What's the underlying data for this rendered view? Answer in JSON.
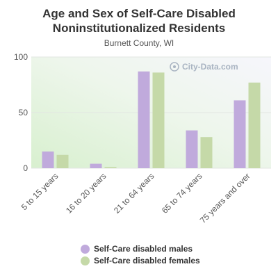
{
  "chart_data": {
    "type": "bar",
    "title": "Age and Sex of Self-Care Disabled Noninstitutionalized Residents",
    "subtitle": "Burnett County, WI",
    "categories": [
      "5 to 15 years",
      "16 to 20 years",
      "21 to 64 years",
      "65 to 74 years",
      "75 years and over"
    ],
    "series": [
      {
        "name": "Self-Care disabled males",
        "color": "#c0aadc",
        "values": [
          15,
          4,
          87,
          34,
          61
        ]
      },
      {
        "name": "Self-Care disabled females",
        "color": "#c5d9a8",
        "values": [
          12,
          1,
          86,
          28,
          77
        ]
      }
    ],
    "ylim": [
      0,
      100
    ],
    "yticks": [
      0,
      50,
      100
    ],
    "watermark": "City-Data.com",
    "legend_position": "bottom",
    "grid": true
  }
}
